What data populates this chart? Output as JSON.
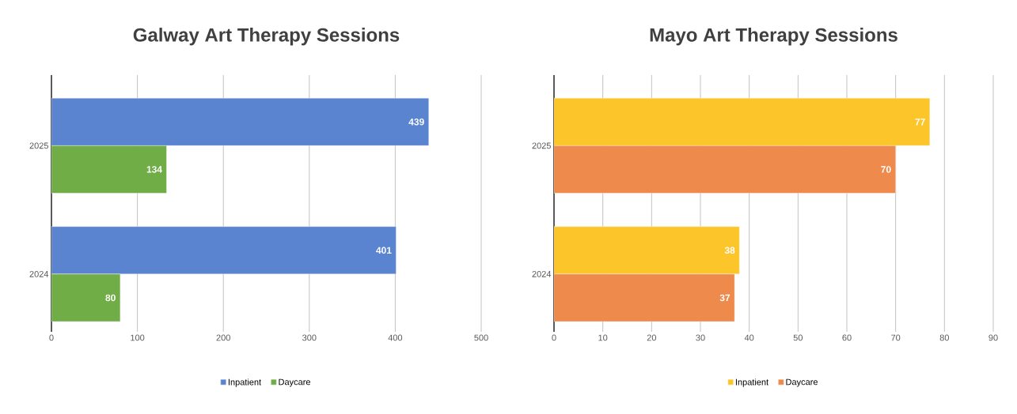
{
  "chart_data": [
    {
      "type": "bar",
      "orientation": "horizontal",
      "title": "Galway Art Therapy Sessions",
      "categories": [
        "2025",
        "2024"
      ],
      "series": [
        {
          "name": "Inpatient",
          "color": "#5b84d0",
          "values": [
            439,
            401
          ]
        },
        {
          "name": "Daycare",
          "color": "#70ad47",
          "values": [
            134,
            80
          ]
        }
      ],
      "xlim": [
        0,
        500
      ],
      "xticks": [
        0,
        100,
        200,
        300,
        400,
        500
      ],
      "grid": "x",
      "legend": "bottom",
      "data_labels": true
    },
    {
      "type": "bar",
      "orientation": "horizontal",
      "title": "Mayo Art Therapy Sessions",
      "categories": [
        "2025",
        "2024"
      ],
      "series": [
        {
          "name": "Inpatient",
          "color": "#fcc62a",
          "values": [
            77,
            38
          ]
        },
        {
          "name": "Daycare",
          "color": "#ed8a4c",
          "values": [
            70,
            37
          ]
        }
      ],
      "xlim": [
        0,
        90
      ],
      "xticks": [
        0,
        10,
        20,
        30,
        40,
        50,
        60,
        70,
        80,
        90
      ],
      "grid": "x",
      "legend": "bottom",
      "data_labels": true
    }
  ]
}
